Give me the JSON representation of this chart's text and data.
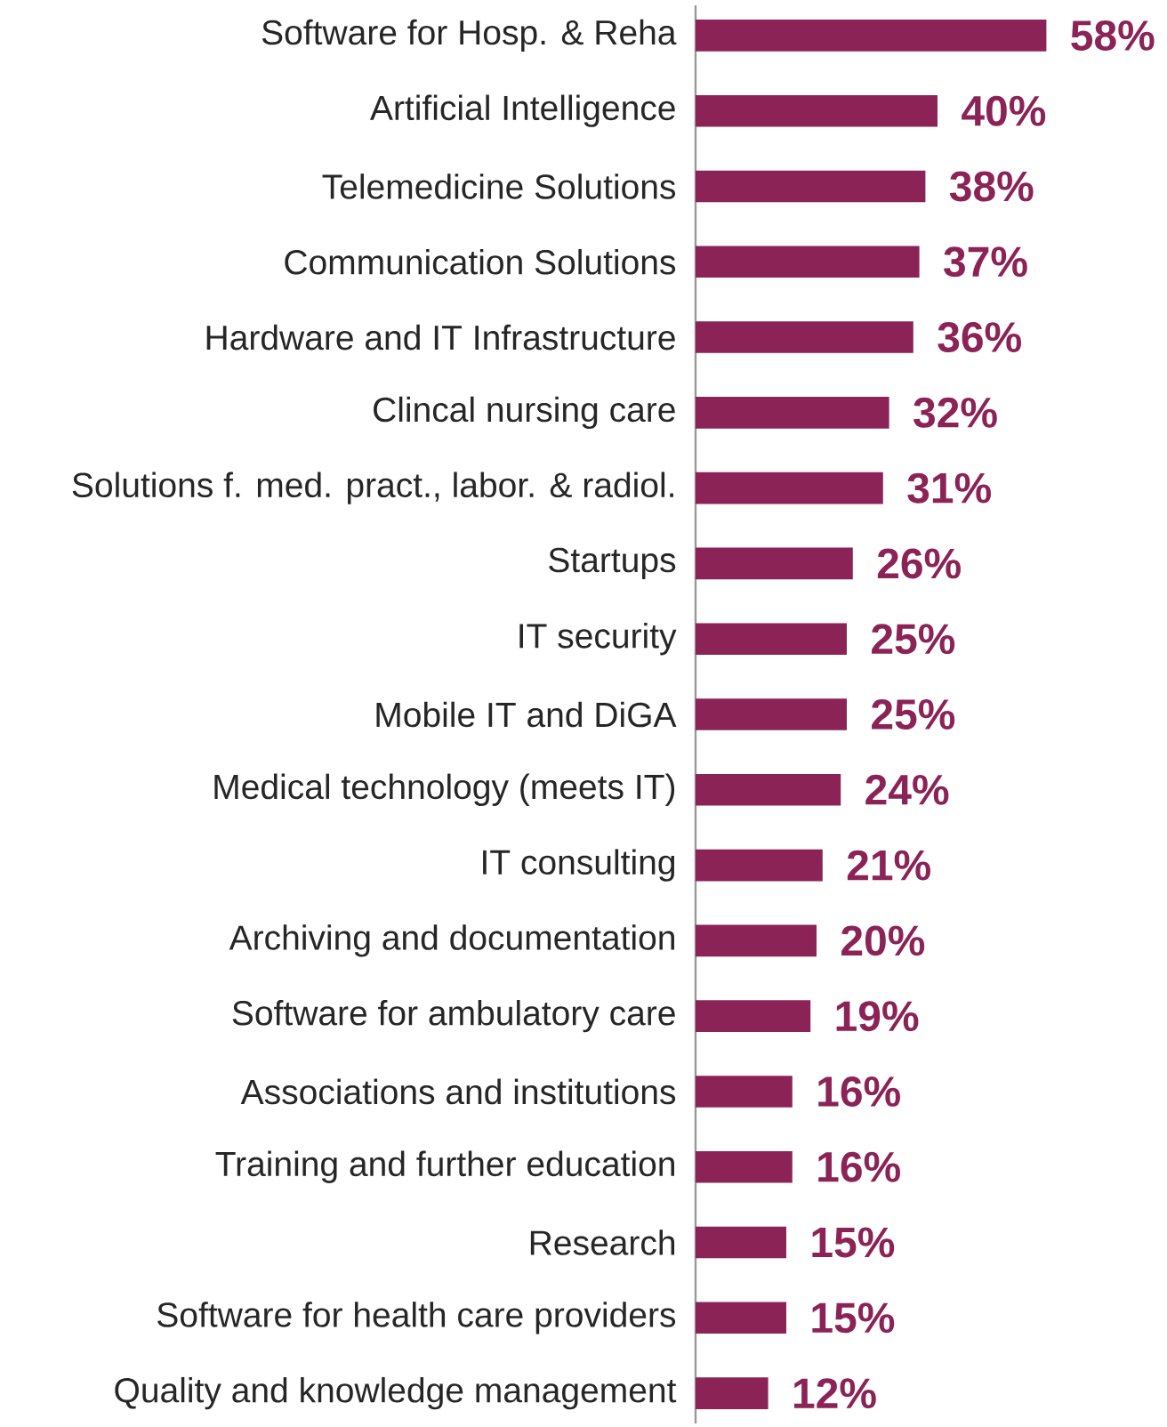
{
  "chart_data": {
    "type": "bar",
    "orientation": "horizontal",
    "categories": [
      "Software for Hosp. & Reha",
      "Artificial Intelligence",
      "Telemedicine Solutions",
      "Communication Solutions",
      "Hardware and IT Infrastructure",
      "Clincal nursing care",
      "Solutions f. med. pract., labor. & radiol.",
      "Startups",
      "IT security",
      "Mobile IT and DiGA",
      "Medical technology (meets IT)",
      "IT consulting",
      "Archiving and documentation",
      "Software for ambulatory care",
      "Associations and institutions",
      "Training and further education",
      "Research",
      "Software for health care providers",
      "Quality and knowledge management"
    ],
    "values": [
      58,
      40,
      38,
      37,
      36,
      32,
      31,
      26,
      25,
      25,
      24,
      21,
      20,
      19,
      16,
      16,
      15,
      15,
      12
    ],
    "value_labels": [
      "58%",
      "40%",
      "38%",
      "37%",
      "36%",
      "32%",
      "31%",
      "26%",
      "25%",
      "25%",
      "24%",
      "21%",
      "20%",
      "19%",
      "16%",
      "16%",
      "15%",
      "15%",
      "12%"
    ],
    "color": "#8c2357"
  }
}
